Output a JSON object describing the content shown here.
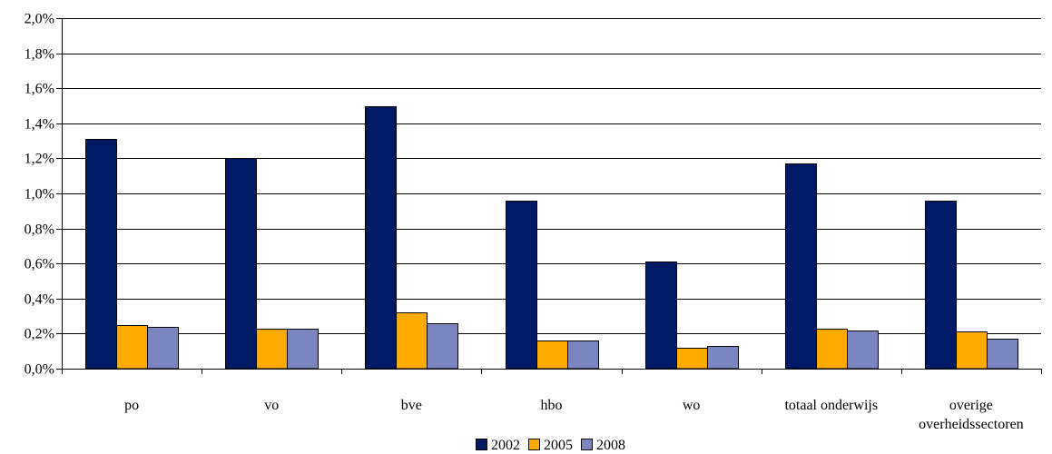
{
  "chart_data": {
    "type": "bar",
    "title": "",
    "xlabel": "",
    "ylabel": "",
    "categories": [
      [
        "po"
      ],
      [
        "vo"
      ],
      [
        "bve"
      ],
      [
        "hbo"
      ],
      [
        "wo"
      ],
      [
        "totaal onderwijs"
      ],
      [
        "overige",
        "overheidssectoren"
      ]
    ],
    "series": [
      {
        "name": "2002",
        "color": "#001a66",
        "values": [
          1.31,
          1.2,
          1.5,
          0.96,
          0.61,
          1.17,
          0.96
        ]
      },
      {
        "name": "2005",
        "color": "#ffaa00",
        "values": [
          0.25,
          0.23,
          0.32,
          0.16,
          0.12,
          0.23,
          0.21
        ]
      },
      {
        "name": "2008",
        "color": "#7b86c0",
        "values": [
          0.24,
          0.23,
          0.26,
          0.16,
          0.13,
          0.22,
          0.17
        ]
      }
    ],
    "ylim": [
      0,
      2.0
    ],
    "yticks": [
      "0,0%",
      "0,2%",
      "0,4%",
      "0,6%",
      "0,8%",
      "1,0%",
      "1,2%",
      "1,4%",
      "1,6%",
      "1,8%",
      "2,0%"
    ],
    "grid": true,
    "legend_position": "bottom-center"
  }
}
